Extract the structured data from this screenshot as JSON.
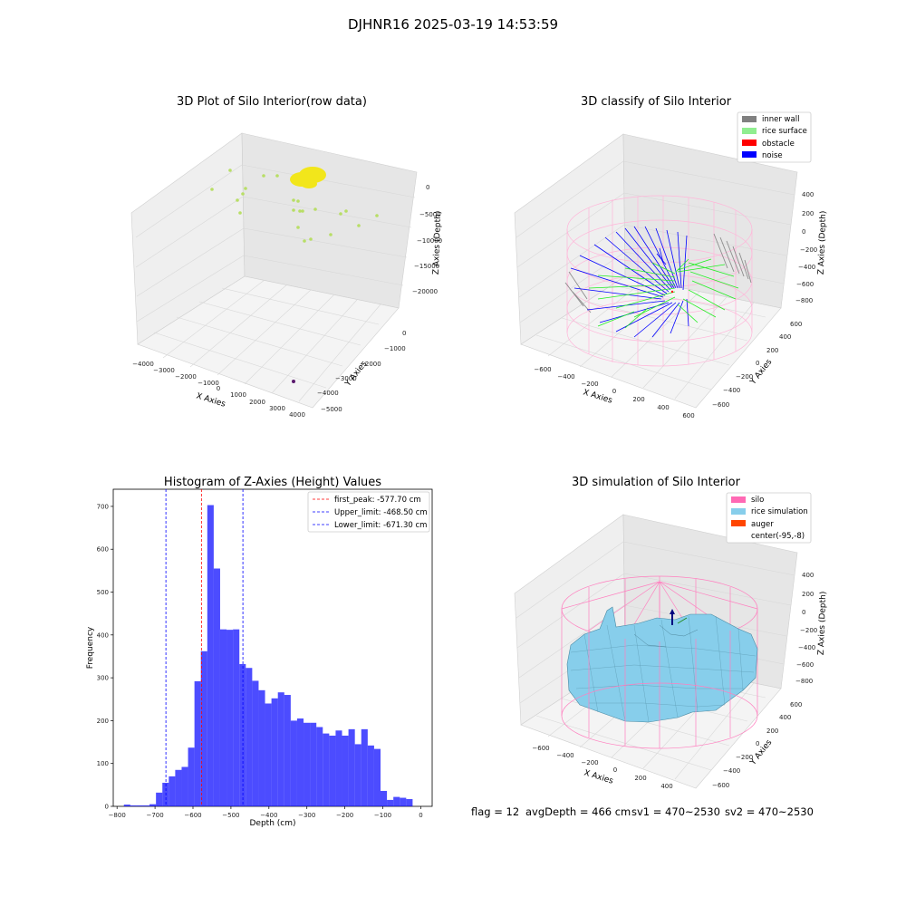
{
  "figure": {
    "title": "DJHNR16 2025-03-19 14:53:59",
    "footer": {
      "flag": "flag = 12",
      "avg_depth": "avgDepth = 466 cm",
      "sv1": "sv1 = 470~2530",
      "sv2": "sv2 = 470~2530"
    }
  },
  "panel_raw": {
    "title": "3D Plot of Silo Interior(row data)",
    "xlabel": "X Axies",
    "ylabel": "Y Axies",
    "zlabel": "Z Axies (Depth)",
    "x_ticks": [
      "−4000",
      "−3000",
      "−2000",
      "−1000",
      "0",
      "1000",
      "2000",
      "3000",
      "4000"
    ],
    "y_ticks": [
      "0",
      "−1000",
      "−2000",
      "−3000",
      "−4000",
      "−5000"
    ],
    "z_ticks": [
      "0",
      "−5000",
      "−10000",
      "−15000",
      "−20000"
    ]
  },
  "panel_classify": {
    "title": "3D classify of Silo Interior",
    "xlabel": "X Axies",
    "ylabel": "Y Axies",
    "zlabel": "Z Axies (Depth)",
    "x_ticks": [
      "−600",
      "−400",
      "−200",
      "0",
      "200",
      "400",
      "600"
    ],
    "y_ticks": [
      "600",
      "400",
      "200",
      "0",
      "−200",
      "−400",
      "−600"
    ],
    "z_ticks": [
      "400",
      "200",
      "0",
      "−200",
      "−400",
      "−600",
      "−800"
    ],
    "legend": [
      {
        "label": "inner wall",
        "color": "#808080"
      },
      {
        "label": "rice surface",
        "color": "#90ee90"
      },
      {
        "label": "obstacle",
        "color": "#ff0000"
      },
      {
        "label": "noise",
        "color": "#0000ff"
      }
    ]
  },
  "panel_sim": {
    "title": "3D simulation of Silo Interior",
    "xlabel": "X Axies",
    "ylabel": "Y Axies",
    "zlabel": "Z Axies (Depth)",
    "x_ticks": [
      "−600",
      "−400",
      "−200",
      "0",
      "200",
      "400"
    ],
    "y_ticks": [
      "600",
      "400",
      "200",
      "0",
      "−200",
      "−400",
      "−600"
    ],
    "z_ticks": [
      "400",
      "200",
      "0",
      "−200",
      "−400",
      "−600",
      "−800"
    ],
    "legend": [
      {
        "label": "silo",
        "color": "#ff69b4"
      },
      {
        "label": "rice simulation",
        "color": "#87ceeb"
      },
      {
        "label": "auger",
        "color": "#ff4500"
      },
      {
        "label": "center(-95,-8)",
        "color": ""
      }
    ]
  },
  "chart_data": {
    "type": "bar",
    "title": "Histogram of Z-Axies (Height) Values",
    "xlabel": "Depth (cm)",
    "ylabel": "Frequency",
    "xlim": [
      -810,
      30
    ],
    "ylim": [
      0,
      740
    ],
    "x_ticks": [
      -800,
      -700,
      -600,
      -500,
      -400,
      -300,
      -200,
      -100,
      0
    ],
    "x_tick_labels": [
      "−800",
      "−700",
      "−600",
      "−500",
      "−400",
      "−300",
      "−200",
      "−100",
      "0"
    ],
    "y_ticks": [
      0,
      100,
      200,
      300,
      400,
      500,
      600,
      700
    ],
    "bin_start": -782,
    "bin_width": 16.9,
    "counts": [
      4,
      2,
      2,
      2,
      5,
      32,
      55,
      70,
      85,
      92,
      137,
      292,
      362,
      703,
      555,
      413,
      412,
      413,
      332,
      323,
      293,
      271,
      240,
      252,
      266,
      260,
      200,
      205,
      195,
      195,
      185,
      170,
      165,
      177,
      165,
      180,
      145,
      180,
      142,
      134,
      36,
      15,
      22,
      20,
      17
    ],
    "bar_color": "#0000ff",
    "vlines": [
      {
        "label": "first_peak: -577.70 cm",
        "x": -577.7,
        "color": "#ff0000"
      },
      {
        "label": "Upper_limit: -468.50 cm",
        "x": -468.5,
        "color": "#0000ff"
      },
      {
        "label": "Lower_limit: -671.30 cm",
        "x": -671.3,
        "color": "#0000ff"
      }
    ],
    "legend_position": "top-right",
    "grid": false
  }
}
